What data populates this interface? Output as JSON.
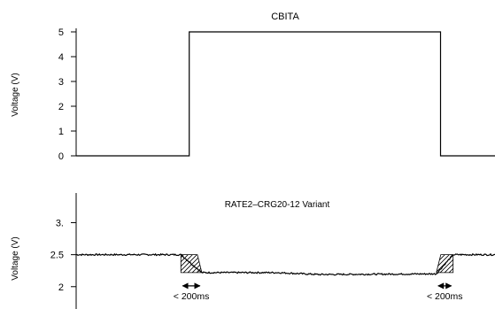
{
  "chart_data": [
    {
      "type": "line",
      "title": "CBITA",
      "ylabel": "Voltage (V)",
      "xlabel": "",
      "ylim": [
        0,
        5
      ],
      "yticks": [
        0,
        1,
        2,
        3,
        4,
        5
      ],
      "x": [
        0,
        0.27,
        0.27,
        0.87,
        0.87,
        1
      ],
      "values": [
        0,
        0,
        5,
        5,
        0,
        0
      ],
      "grid": false,
      "line_color": "#000000"
    },
    {
      "type": "line",
      "title": "RATE2–CRG20-12 Variant",
      "ylabel": "Voltage (V)",
      "xlabel": "",
      "ylim": [
        1.72,
        3.45
      ],
      "yticks": [
        2,
        2.5,
        3
      ],
      "ytick_labels": [
        "2",
        "2.5",
        "3."
      ],
      "x": [
        0,
        0.25,
        0.3,
        0.48,
        0.58,
        0.86,
        0.9,
        1
      ],
      "values": [
        2.5,
        2.5,
        2.22,
        2.22,
        2.19,
        2.2,
        2.5,
        2.5
      ],
      "noise": 0.012,
      "grid": false,
      "line_color": "#000000",
      "annotations": [
        {
          "label": "< 200ms",
          "x_start": 0.25,
          "x_end": 0.3,
          "hatch": "falling"
        },
        {
          "label": "< 200ms",
          "x_start": 0.86,
          "x_end": 0.9,
          "hatch": "rising"
        }
      ]
    }
  ]
}
